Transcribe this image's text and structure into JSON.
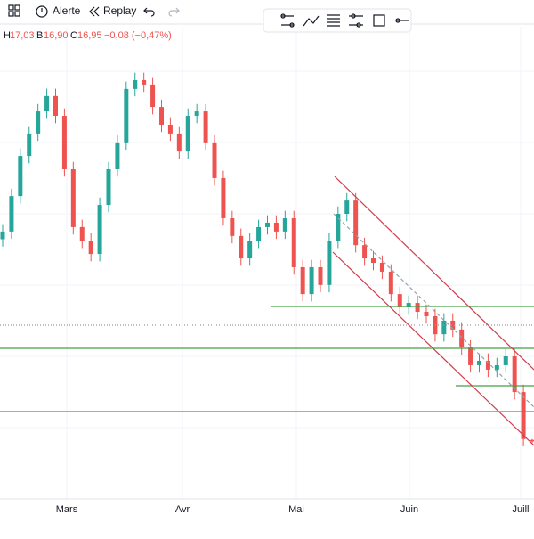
{
  "toolbar": {
    "alert": "Alerte",
    "replay": "Replay"
  },
  "legend": {
    "h_label": "H",
    "h_value": "17,03",
    "b_label": "B",
    "b_value": "16,90",
    "c_label": "C",
    "c_value": "16,95",
    "change": "−0,08 (−0,47%)"
  },
  "chart_data": {
    "type": "candlestick",
    "categories": [
      "Mars",
      "Avr",
      "Mai",
      "Juin",
      "Juill"
    ],
    "ylim": [
      15,
      31
    ],
    "up_color": "#26a69a",
    "down_color": "#ef5350",
    "open": [
      23.8,
      24.06,
      25.26,
      26.62,
      27.38,
      28.13,
      28.65,
      27.98,
      26.17,
      24.21,
      23.75,
      23.3,
      24.96,
      26.17,
      27.08,
      28.89,
      29.19,
      29.04,
      28.28,
      27.68,
      27.38,
      26.77,
      27.98,
      28.13,
      27.08,
      25.87,
      24.51,
      23.91,
      23.15,
      23.75,
      24.21,
      24.36,
      24.06,
      24.51,
      22.85,
      21.94,
      22.85,
      22.25,
      23.75,
      24.66,
      25.11,
      23.6,
      23.15,
      23.0,
      22.7,
      21.94,
      21.49,
      21.64,
      21.34,
      21.19,
      20.58,
      21.04,
      20.74,
      20.13,
      19.53,
      19.68,
      19.38,
      19.53,
      19.83,
      18.62,
      17.0
    ],
    "high": [
      24.31,
      25.51,
      26.87,
      27.63,
      28.38,
      28.9,
      28.9,
      28.23,
      26.42,
      24.46,
      24.0,
      25.21,
      26.42,
      27.33,
      29.14,
      29.44,
      29.44,
      29.29,
      28.53,
      27.93,
      27.63,
      28.23,
      28.38,
      28.38,
      27.33,
      26.12,
      24.76,
      24.16,
      24.0,
      24.46,
      24.61,
      24.61,
      24.76,
      24.76,
      23.1,
      23.1,
      23.1,
      24.0,
      24.91,
      25.36,
      25.36,
      23.85,
      23.4,
      23.25,
      22.95,
      22.19,
      21.89,
      21.89,
      21.59,
      21.44,
      21.29,
      21.29,
      20.99,
      20.38,
      19.93,
      19.93,
      19.78,
      20.08,
      20.08,
      18.87,
      17.03
    ],
    "low": [
      23.55,
      23.81,
      25.01,
      26.37,
      27.13,
      27.88,
      27.73,
      25.92,
      23.96,
      23.5,
      23.05,
      23.05,
      24.71,
      25.92,
      26.83,
      28.64,
      28.79,
      28.03,
      27.43,
      27.13,
      26.52,
      26.52,
      27.73,
      26.83,
      25.62,
      24.26,
      23.66,
      22.9,
      22.9,
      23.5,
      23.96,
      23.81,
      23.81,
      22.6,
      21.69,
      21.69,
      22.0,
      22.0,
      23.5,
      24.41,
      23.35,
      22.9,
      22.75,
      22.45,
      21.69,
      21.24,
      21.24,
      21.09,
      20.94,
      20.33,
      20.33,
      20.49,
      19.88,
      19.28,
      19.28,
      19.13,
      19.13,
      19.28,
      18.37,
      16.78,
      16.9
    ],
    "close": [
      24.06,
      25.26,
      26.62,
      27.38,
      28.13,
      28.65,
      27.98,
      26.17,
      24.21,
      23.75,
      23.3,
      24.96,
      26.17,
      27.08,
      28.89,
      29.19,
      29.04,
      28.28,
      27.68,
      27.38,
      26.77,
      27.98,
      28.13,
      27.08,
      25.87,
      24.51,
      23.91,
      23.15,
      23.75,
      24.21,
      24.36,
      24.06,
      24.51,
      22.85,
      21.94,
      22.85,
      22.25,
      23.75,
      24.66,
      25.11,
      23.6,
      23.15,
      23.0,
      22.7,
      21.94,
      21.49,
      21.64,
      21.34,
      21.19,
      20.58,
      21.04,
      20.74,
      20.13,
      19.53,
      19.68,
      19.38,
      19.53,
      19.83,
      18.62,
      17.03,
      16.95
    ]
  }
}
